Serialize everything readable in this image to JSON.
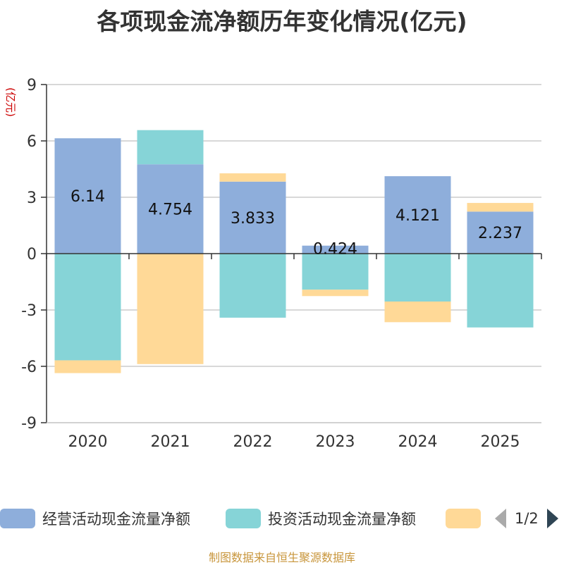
{
  "title": "各项现金流净额历年变化情况(亿元)",
  "source": "制图数据来自恒生聚源数据库",
  "pager": {
    "text": "1/2"
  },
  "chart_data": {
    "type": "bar",
    "stacked": true,
    "title": "各项现金流净额历年变化情况(亿元)",
    "ylabel": "(亿元)",
    "xlabel": "",
    "ylim": [
      -9,
      9
    ],
    "yticks": [
      9,
      6,
      3,
      0,
      -3,
      -6,
      -9
    ],
    "categories": [
      "2020",
      "2021",
      "2022",
      "2023",
      "2024",
      "2025"
    ],
    "grid": true,
    "legend_position": "bottom",
    "series": [
      {
        "name": "经营活动现金流量净额",
        "color": "#8eaedb",
        "values": [
          6.14,
          4.754,
          3.833,
          0.424,
          4.121,
          2.237
        ],
        "labels": [
          "6.14",
          "4.754",
          "3.833",
          "0.424",
          "4.121",
          "2.237"
        ]
      },
      {
        "name": "投资活动现金流量净额",
        "color": "#86d4d7",
        "values": [
          -5.68,
          1.82,
          -3.41,
          -1.92,
          -2.55,
          -3.93
        ]
      },
      {
        "name": "",
        "color": "#ffd997",
        "values": [
          -0.68,
          -5.88,
          0.44,
          -0.34,
          -1.1,
          0.46
        ]
      }
    ]
  }
}
